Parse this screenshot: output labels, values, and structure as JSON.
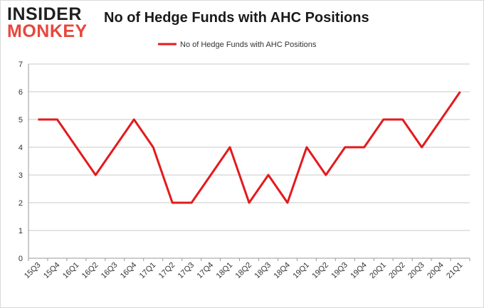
{
  "logo": {
    "line1": "INSIDER",
    "line2": "MONKEY"
  },
  "chart_data": {
    "type": "line",
    "title": "No of Hedge Funds with AHC Positions",
    "xlabel": "",
    "ylabel": "",
    "categories": [
      "15Q3",
      "15Q4",
      "16Q1",
      "16Q2",
      "16Q3",
      "16Q4",
      "17Q1",
      "17Q2",
      "17Q3",
      "17Q4",
      "18Q1",
      "18Q2",
      "18Q3",
      "18Q4",
      "19Q1",
      "19Q2",
      "19Q3",
      "19Q4",
      "20Q1",
      "20Q2",
      "20Q3",
      "20Q4",
      "21Q1"
    ],
    "series": [
      {
        "name": "No of Hedge Funds with AHC Positions",
        "color": "#e31a1c",
        "values": [
          5,
          5,
          4,
          3,
          4,
          5,
          4,
          2,
          2,
          3,
          4,
          2,
          3,
          2,
          4,
          3,
          4,
          4,
          5,
          5,
          4,
          5,
          6
        ]
      }
    ],
    "ylim": [
      0,
      7
    ],
    "yticks": [
      0,
      1,
      2,
      3,
      4,
      5,
      6,
      7
    ],
    "grid": true,
    "legend": "top-center"
  }
}
